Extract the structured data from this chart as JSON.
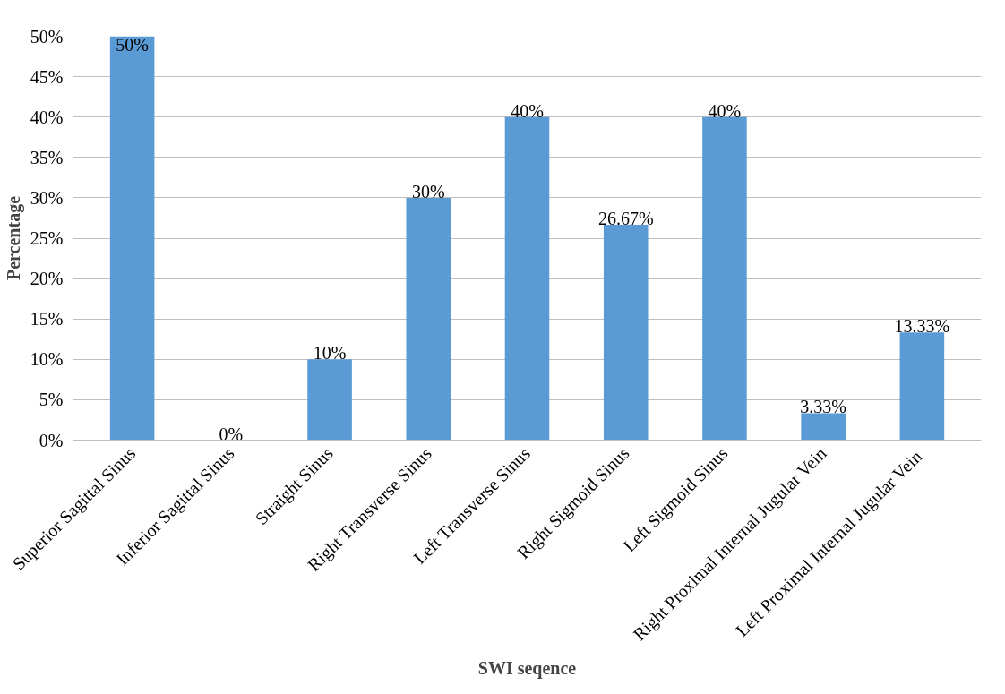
{
  "chart_data": {
    "type": "bar",
    "xlabel": "SWI seqence",
    "ylabel": "Percentage",
    "categories": [
      "Superior Sagittal Sinus",
      "Inferior Sagittal Sinus",
      "Straight Sinus",
      "Right Transverse Sinus",
      "Left Transverse Sinus",
      "Right Sigmoid Sinus",
      "Left Sigmoid Sinus",
      "Right Proximal Internal Jugular Vein",
      "Left  Proximal Internal Jugular Vein"
    ],
    "values": [
      50,
      0,
      10,
      30,
      40,
      26.67,
      40,
      3.33,
      13.33
    ],
    "value_labels": [
      "50%",
      "0%",
      "10%",
      "30%",
      "40%",
      "26.67%",
      "40%",
      "3.33%",
      "13.33%"
    ],
    "color": "#5b9bd5",
    "ylim": [
      0,
      50
    ],
    "yticks": [
      {
        "value": 0,
        "label": "0%"
      },
      {
        "value": 5,
        "label": "5%"
      },
      {
        "value": 10,
        "label": "10%"
      },
      {
        "value": 15,
        "label": "15%"
      },
      {
        "value": 20,
        "label": "20%"
      },
      {
        "value": 25,
        "label": "25%"
      },
      {
        "value": 30,
        "label": "30%"
      },
      {
        "value": 35,
        "label": "35%"
      },
      {
        "value": 40,
        "label": "40%"
      },
      {
        "value": 45,
        "label": "45%"
      },
      {
        "value": 50,
        "label": "50%"
      }
    ],
    "grid": "y"
  }
}
